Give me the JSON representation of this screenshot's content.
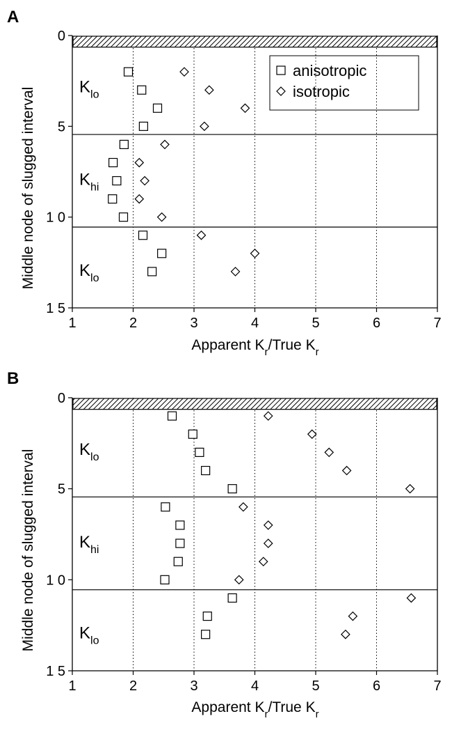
{
  "chart_data": [
    {
      "panel": "A",
      "type": "scatter",
      "xlabel": {
        "main": "Apparent ",
        "k1": "K",
        "sub1": "r",
        "mid": "/True ",
        "k2": "K",
        "sub2": "r"
      },
      "ylabel": "Middle node of slugged interval",
      "xlim": [
        1,
        7
      ],
      "ylim": [
        0,
        15
      ],
      "y_inverted": true,
      "x_ticks": [
        "1",
        "2",
        "3",
        "4",
        "5",
        "6",
        "7"
      ],
      "x_tick_values": [
        1,
        2,
        3,
        4,
        5,
        6,
        7
      ],
      "y_ticks": [
        "0",
        "5",
        "1 0",
        "1 5"
      ],
      "y_tick_values": [
        0,
        5,
        10,
        15
      ],
      "vertical_grid": "dotted at x = 2, 3, 4, 5, 6",
      "screen_band": [
        0,
        0.6
      ],
      "layer_boundaries": [
        5.45,
        10.55
      ],
      "regions": [
        {
          "k": "K",
          "sub": "lo",
          "y": 2.9
        },
        {
          "k": "K",
          "sub": "hi",
          "y": 8.0
        },
        {
          "k": "K",
          "sub": "lo",
          "y": 13.0
        }
      ],
      "legend_position": "top-right",
      "series": [
        {
          "name": "anisotropic",
          "marker": "square",
          "points": [
            {
              "x": 1.92,
              "y": 2
            },
            {
              "x": 2.14,
              "y": 3
            },
            {
              "x": 2.4,
              "y": 4
            },
            {
              "x": 2.17,
              "y": 5
            },
            {
              "x": 1.85,
              "y": 6
            },
            {
              "x": 1.67,
              "y": 7
            },
            {
              "x": 1.73,
              "y": 8
            },
            {
              "x": 1.66,
              "y": 9
            },
            {
              "x": 1.84,
              "y": 10
            },
            {
              "x": 2.16,
              "y": 11
            },
            {
              "x": 2.47,
              "y": 12
            },
            {
              "x": 2.31,
              "y": 13
            }
          ]
        },
        {
          "name": "isotropic",
          "marker": "diamond",
          "points": [
            {
              "x": 2.84,
              "y": 2
            },
            {
              "x": 3.25,
              "y": 3
            },
            {
              "x": 3.84,
              "y": 4
            },
            {
              "x": 3.17,
              "y": 5
            },
            {
              "x": 2.52,
              "y": 6
            },
            {
              "x": 2.1,
              "y": 7
            },
            {
              "x": 2.19,
              "y": 8
            },
            {
              "x": 2.1,
              "y": 9
            },
            {
              "x": 2.47,
              "y": 10
            },
            {
              "x": 3.12,
              "y": 11
            },
            {
              "x": 4.0,
              "y": 12
            },
            {
              "x": 3.68,
              "y": 13
            }
          ]
        }
      ]
    },
    {
      "panel": "B",
      "type": "scatter",
      "xlabel": {
        "main": "Apparent ",
        "k1": "K",
        "sub1": "r",
        "mid": "/True ",
        "k2": "K",
        "sub2": "r"
      },
      "ylabel": "Middle node of slugged interval",
      "xlim": [
        1,
        7
      ],
      "ylim": [
        0,
        15
      ],
      "y_inverted": true,
      "x_ticks": [
        "1",
        "2",
        "3",
        "4",
        "5",
        "6",
        "7"
      ],
      "x_tick_values": [
        1,
        2,
        3,
        4,
        5,
        6,
        7
      ],
      "y_ticks": [
        "0",
        "5",
        "1 0",
        "1 5"
      ],
      "y_tick_values": [
        0,
        5,
        10,
        15
      ],
      "vertical_grid": "dotted at x = 2, 3, 4, 5, 6",
      "screen_band": [
        0,
        0.6
      ],
      "layer_boundaries": [
        5.45,
        10.55
      ],
      "regions": [
        {
          "k": "K",
          "sub": "lo",
          "y": 2.9
        },
        {
          "k": "K",
          "sub": "hi",
          "y": 8.0
        },
        {
          "k": "K",
          "sub": "lo",
          "y": 13.0
        }
      ],
      "legend_position": "none",
      "series": [
        {
          "name": "anisotropic",
          "marker": "square",
          "points": [
            {
              "x": 2.64,
              "y": 1
            },
            {
              "x": 2.98,
              "y": 2
            },
            {
              "x": 3.09,
              "y": 3
            },
            {
              "x": 3.19,
              "y": 4
            },
            {
              "x": 3.63,
              "y": 5
            },
            {
              "x": 2.53,
              "y": 6
            },
            {
              "x": 2.77,
              "y": 7
            },
            {
              "x": 2.77,
              "y": 8
            },
            {
              "x": 2.74,
              "y": 9
            },
            {
              "x": 2.52,
              "y": 10
            },
            {
              "x": 3.63,
              "y": 11
            },
            {
              "x": 3.22,
              "y": 12
            },
            {
              "x": 3.19,
              "y": 13
            }
          ]
        },
        {
          "name": "isotropic",
          "marker": "diamond",
          "points": [
            {
              "x": 4.22,
              "y": 1
            },
            {
              "x": 4.94,
              "y": 2
            },
            {
              "x": 5.22,
              "y": 3
            },
            {
              "x": 5.51,
              "y": 4
            },
            {
              "x": 6.55,
              "y": 5
            },
            {
              "x": 3.81,
              "y": 6
            },
            {
              "x": 4.22,
              "y": 7
            },
            {
              "x": 4.22,
              "y": 8
            },
            {
              "x": 4.14,
              "y": 9
            },
            {
              "x": 3.74,
              "y": 10
            },
            {
              "x": 6.57,
              "y": 11
            },
            {
              "x": 5.61,
              "y": 12
            },
            {
              "x": 5.49,
              "y": 13
            }
          ]
        }
      ]
    }
  ]
}
